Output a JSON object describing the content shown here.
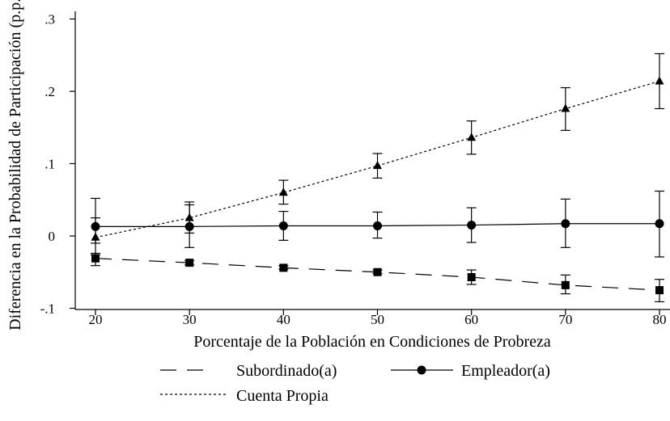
{
  "chart_data": {
    "type": "line",
    "title": "",
    "xlabel": "Porcentaje de la Población en Condiciones de Probreza",
    "ylabel": "Diferencia en la Probabilidad de Participación (p.p.)",
    "x": [
      20,
      30,
      40,
      50,
      60,
      70,
      80
    ],
    "xlim": [
      20,
      80
    ],
    "ylim": [
      -0.1,
      0.3
    ],
    "x_ticks": [
      20,
      30,
      40,
      50,
      60,
      70,
      80
    ],
    "x_tick_labels": [
      "20",
      "30",
      "40",
      "50",
      "60",
      "70",
      "80"
    ],
    "y_ticks": [
      -0.1,
      0,
      0.1,
      0.2,
      0.3
    ],
    "y_tick_labels": [
      "-.1",
      "0",
      ".1",
      ".2",
      ".3"
    ],
    "grid": false,
    "legend_position": "bottom",
    "series": [
      {
        "name": "Subordinado(a)",
        "line_style": "long-dash",
        "marker": "square",
        "color": "#000000",
        "values": [
          -0.031,
          -0.037,
          -0.044,
          -0.05,
          -0.057,
          -0.068,
          -0.075
        ],
        "error_low": [
          -0.041,
          -0.04,
          -0.046,
          -0.052,
          -0.067,
          -0.08,
          -0.091
        ],
        "error_high": [
          -0.024,
          -0.034,
          -0.041,
          -0.047,
          -0.047,
          -0.054,
          -0.06
        ]
      },
      {
        "name": "Empleador(a)",
        "line_style": "solid",
        "marker": "circle",
        "color": "#000000",
        "values": [
          0.013,
          0.013,
          0.014,
          0.014,
          0.015,
          0.017,
          0.017
        ],
        "error_low": [
          -0.026,
          -0.016,
          -0.006,
          -0.003,
          -0.009,
          -0.016,
          -0.029
        ],
        "error_high": [
          0.052,
          0.043,
          0.034,
          0.033,
          0.039,
          0.051,
          0.062
        ]
      },
      {
        "name": "Cuenta Propia",
        "line_style": "short-dash",
        "marker": "triangle",
        "color": "#000000",
        "values": [
          -0.002,
          0.025,
          0.06,
          0.097,
          0.136,
          0.176,
          0.214
        ],
        "error_low": [
          -0.01,
          0.004,
          0.044,
          0.08,
          0.113,
          0.146,
          0.176
        ],
        "error_high": [
          0.025,
          0.047,
          0.077,
          0.114,
          0.159,
          0.205,
          0.252
        ]
      }
    ]
  }
}
